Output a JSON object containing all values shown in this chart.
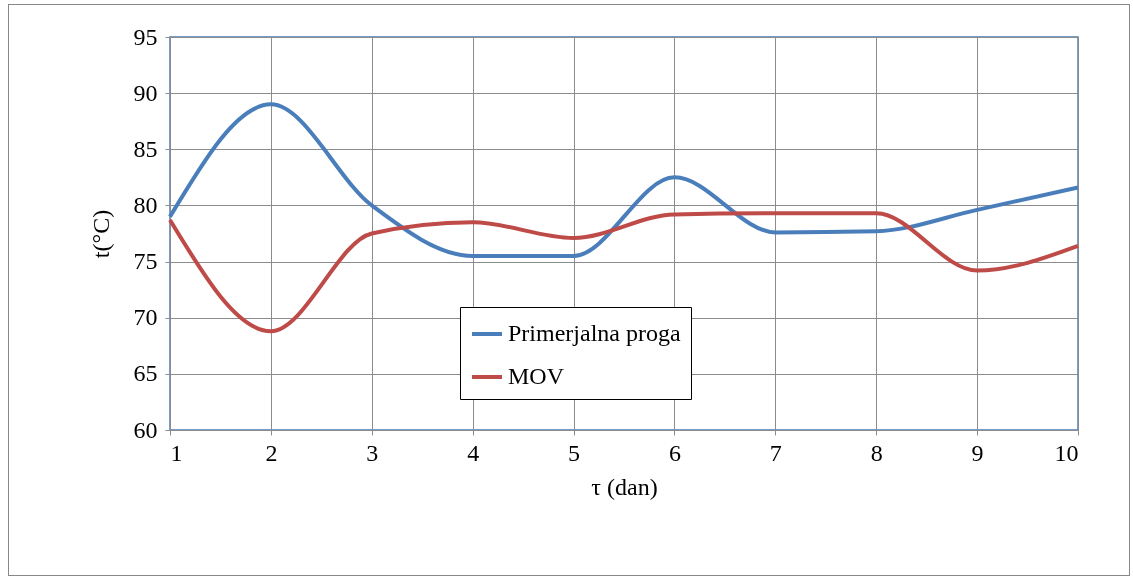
{
  "chart_data": {
    "type": "line",
    "xlabel": "τ (dan)",
    "ylabel": "t(°C)",
    "x": [
      1,
      2,
      3,
      4,
      5,
      6,
      7,
      8,
      9,
      10
    ],
    "series": [
      {
        "name": "Primerjalna proga",
        "color": "#4a7ebb",
        "values": [
          79,
          89,
          80,
          75.5,
          75.5,
          82.5,
          77.6,
          77.7,
          79.6,
          81.6
        ]
      },
      {
        "name": "MOV",
        "color": "#be4b48",
        "values": [
          78.7,
          68.8,
          77.5,
          78.5,
          77.1,
          79.2,
          79.3,
          79.3,
          74.2,
          76.4
        ]
      }
    ],
    "xlim": [
      1,
      10
    ],
    "xticks": [
      1,
      2,
      3,
      4,
      5,
      6,
      7,
      8,
      9,
      10
    ],
    "ylim": [
      60,
      95
    ],
    "yticks": [
      60,
      65,
      70,
      75,
      80,
      85,
      90,
      95
    ],
    "grid": true,
    "legend": "bottom",
    "marker": "none",
    "line_style": "solid"
  }
}
